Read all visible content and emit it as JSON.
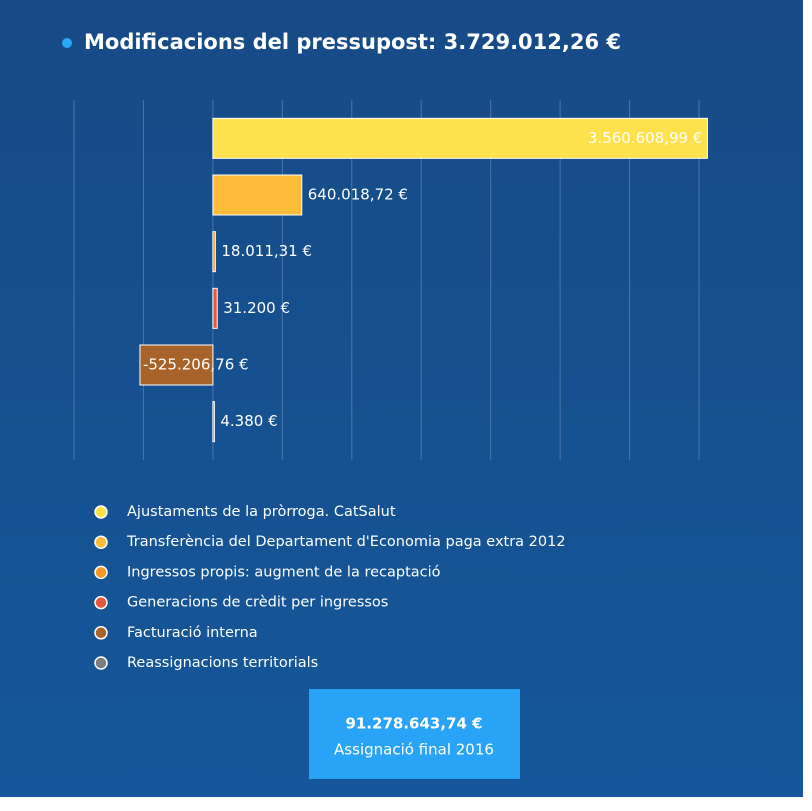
{
  "chart_data": {
    "type": "bar",
    "orientation": "horizontal",
    "title": "Modificacions del pressupost: 3.729.012,26 €",
    "categories": [
      "Ajustaments de la pròrroga. CatSalut",
      "Transferència del Departament d'Economia paga extra 2012",
      "Ingressos propis: augment de la recaptació",
      "Generacions de crèdit per ingressos",
      "Facturació interna",
      "Reassignacions territorials"
    ],
    "values": [
      3560608.99,
      640018.72,
      18011.31,
      31200,
      -525206.76,
      4380
    ],
    "value_labels": [
      "3.560.608,99 €",
      "640.018,72 €",
      "18.011,31 €",
      "31.200 €",
      "-525.206,76 €",
      "4.380 €"
    ],
    "colors": [
      "#ffe14d",
      "#ffbb3a",
      "#f59b24",
      "#e35a3b",
      "#a7632a",
      "#7c7c7c"
    ],
    "xlim": [
      -1000000,
      3500000
    ],
    "xticks": [
      -1000000,
      -500000,
      0,
      500000,
      1000000,
      1500000,
      2000000,
      2500000,
      3000000,
      3500000
    ],
    "grid": true,
    "legend": "bottom"
  },
  "summary_box": {
    "amount": "91.278.643,74 €",
    "label": "Assignació final 2016"
  }
}
